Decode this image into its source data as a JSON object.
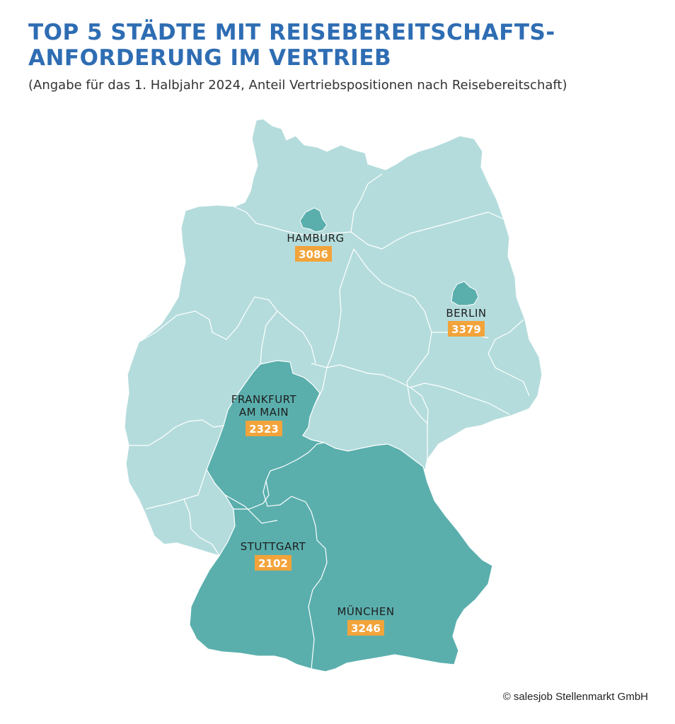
{
  "title": {
    "line1": "TOP 5 STÄDTE MIT REISEBEREITSCHAFTS-",
    "line2": "ANFORDERUNG IM VERTRIEB"
  },
  "subtitle": "(Angabe für das 1. Halbjahr 2024, Anteil Vertriebspositionen nach Reisebereitschaft)",
  "colors": {
    "title": "#2e6db3",
    "land": "#b5dcdc",
    "highlight": "#5aafad",
    "badge": "#f2a33a",
    "border": "#ffffff"
  },
  "cities": [
    {
      "id": "hamburg",
      "name": "HAMBURG",
      "value": "3086"
    },
    {
      "id": "berlin",
      "name": "BERLIN",
      "value": "3379"
    },
    {
      "id": "frankfurt",
      "name_line1": "FRANKFURT",
      "name_line2": "AM MAIN",
      "value": "2323"
    },
    {
      "id": "stuttgart",
      "name": "STUTTGART",
      "value": "2102"
    },
    {
      "id": "muenchen",
      "name": "MÜNCHEN",
      "value": "3246"
    }
  ],
  "copyright": "© salesjob Stellenmarkt GmbH"
}
